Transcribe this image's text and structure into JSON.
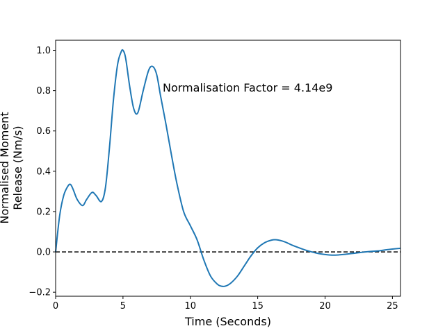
{
  "chart_data": {
    "type": "line",
    "title": "",
    "xlabel": "Time (Seconds)",
    "ylabel_lines": [
      "Normalised Moment",
      "Release (Nm/s)"
    ],
    "xlim": [
      0,
      25.6
    ],
    "ylim": [
      -0.22,
      1.05
    ],
    "xticks": [
      0,
      5,
      10,
      15,
      20,
      25
    ],
    "yticks": [
      -0.2,
      0.0,
      0.2,
      0.4,
      0.6,
      0.8,
      1.0
    ],
    "ytick_labels": [
      "−0.2",
      "0.0",
      "0.2",
      "0.4",
      "0.6",
      "0.8",
      "1.0"
    ],
    "grid": false,
    "annotation": "Normalisation Factor = 4.14e9",
    "reference_line": {
      "y": 0,
      "style": "dashed",
      "color": "#000000"
    },
    "series": [
      {
        "color": "#1f77b4",
        "x": [
          0,
          0.3,
          0.6,
          0.9,
          1.1,
          1.3,
          1.6,
          2.0,
          2.3,
          2.7,
          3.0,
          3.4,
          3.7,
          4.0,
          4.3,
          4.6,
          4.85,
          5.0,
          5.2,
          5.5,
          5.8,
          6.1,
          6.5,
          6.9,
          7.2,
          7.5,
          7.8,
          8.2,
          8.6,
          9.0,
          9.5,
          10.0,
          10.5,
          11.0,
          11.5,
          12.0,
          12.3,
          12.6,
          13.0,
          13.5,
          14.0,
          14.5,
          15.0,
          15.5,
          16.0,
          16.4,
          17.0,
          17.5,
          18.0,
          18.5,
          19.0,
          19.5,
          20.0,
          20.5,
          21.0,
          21.5,
          22.0,
          22.5,
          23.0,
          23.5,
          24.0,
          24.5,
          25.0,
          25.6
        ],
        "y": [
          0.0,
          0.18,
          0.28,
          0.325,
          0.335,
          0.31,
          0.26,
          0.23,
          0.26,
          0.295,
          0.28,
          0.25,
          0.32,
          0.52,
          0.76,
          0.93,
          0.99,
          1.0,
          0.96,
          0.82,
          0.71,
          0.69,
          0.8,
          0.9,
          0.92,
          0.88,
          0.77,
          0.63,
          0.48,
          0.34,
          0.2,
          0.13,
          0.06,
          -0.04,
          -0.12,
          -0.16,
          -0.17,
          -0.17,
          -0.155,
          -0.12,
          -0.07,
          -0.02,
          0.02,
          0.045,
          0.058,
          0.06,
          0.05,
          0.035,
          0.022,
          0.01,
          0.0,
          -0.008,
          -0.013,
          -0.016,
          -0.015,
          -0.012,
          -0.008,
          -0.004,
          0.0,
          0.003,
          0.005,
          0.01,
          0.014,
          0.018
        ]
      }
    ]
  }
}
